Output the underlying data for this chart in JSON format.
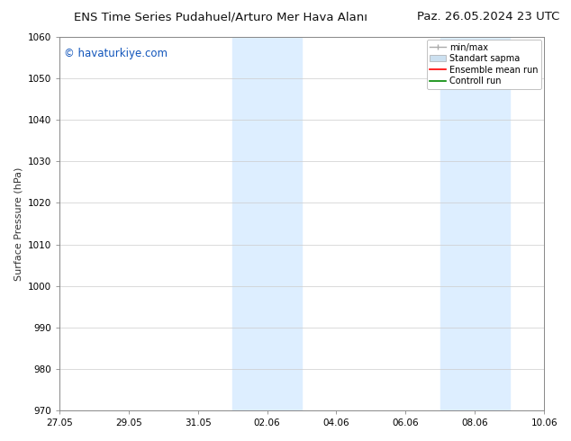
{
  "title_left": "ENS Time Series Pudahuel/Arturo Mer Hava Alanı",
  "title_right": "Paz. 26.05.2024 23 UTC",
  "ylabel": "Surface Pressure (hPa)",
  "ylim": [
    970,
    1060
  ],
  "yticks": [
    970,
    980,
    990,
    1000,
    1010,
    1020,
    1030,
    1040,
    1050,
    1060
  ],
  "xtick_labels": [
    "27.05",
    "29.05",
    "31.05",
    "02.06",
    "04.06",
    "06.06",
    "08.06",
    "10.06"
  ],
  "xtick_positions": [
    0,
    2,
    4,
    6,
    8,
    10,
    12,
    14
  ],
  "watermark": "© havaturkiye.com",
  "watermark_color": "#1155bb",
  "bg_color": "#ffffff",
  "plot_bg_color": "#ffffff",
  "shaded_bands": [
    {
      "x_start": 5.0,
      "x_end": 6.0,
      "color": "#ddeeff"
    },
    {
      "x_start": 6.0,
      "x_end": 7.0,
      "color": "#ddeeff"
    },
    {
      "x_start": 11.0,
      "x_end": 12.0,
      "color": "#ddeeff"
    },
    {
      "x_start": 12.0,
      "x_end": 13.0,
      "color": "#ddeeff"
    }
  ],
  "legend_labels": [
    "min/max",
    "Standart sapma",
    "Ensemble mean run",
    "Controll run"
  ],
  "legend_colors_line": [
    "#aaaaaa",
    "#bbccdd",
    "#ff0000",
    "#008800"
  ],
  "grid_color": "#cccccc",
  "spine_color": "#888888",
  "tick_color": "#333333",
  "font_size_title": 9.5,
  "font_size_axis": 8,
  "font_size_tick": 7.5,
  "font_size_legend": 7,
  "font_size_watermark": 8.5
}
